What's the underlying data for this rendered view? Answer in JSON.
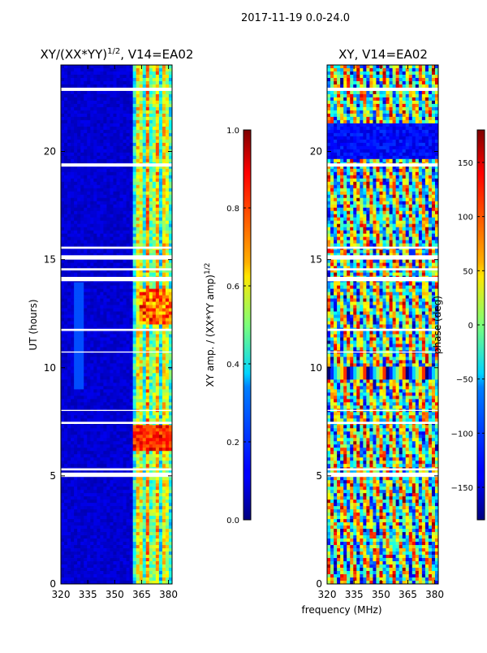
{
  "header": {
    "date_range": "2017-11-19 0.0-24.0"
  },
  "chart_data": [
    {
      "type": "heatmap",
      "title_prefix": "XY/(XX*YY)",
      "title_exp": "1/2",
      "title_suffix": ", V14=EA02",
      "ylabel": "UT (hours)",
      "xlim": [
        320,
        382
      ],
      "ylim": [
        0,
        24
      ],
      "xticks": [
        "320",
        "335",
        "350",
        "365",
        "380"
      ],
      "xtick_values": [
        320,
        335,
        350,
        365,
        380
      ],
      "yticks": [
        "0",
        "5",
        "10",
        "15",
        "20"
      ],
      "ytick_values": [
        0,
        5,
        10,
        15,
        20
      ],
      "colorbar": {
        "label_prefix": "XY amp. / (XX*YY amp)",
        "label_exp": "1/2",
        "range": [
          0.0,
          1.0
        ],
        "ticks": [
          "0.0",
          "0.2",
          "0.4",
          "0.6",
          "0.8",
          "1.0"
        ],
        "tick_values": [
          0.0,
          0.2,
          0.4,
          0.6,
          0.8,
          1.0
        ]
      }
    },
    {
      "type": "heatmap",
      "title_prefix": "XY, V14=EA02",
      "title_exp": "",
      "title_suffix": "",
      "xlabel": "frequency (MHz)",
      "xlim": [
        320,
        382
      ],
      "ylim": [
        0,
        24
      ],
      "xticks": [
        "320",
        "335",
        "350",
        "365",
        "380"
      ],
      "xtick_values": [
        320,
        335,
        350,
        365,
        380
      ],
      "yticks": [
        "0",
        "5",
        "10",
        "15",
        "20"
      ],
      "ytick_values": [
        0,
        5,
        10,
        15,
        20
      ],
      "colorbar": {
        "label_prefix": "phase (deg)",
        "label_exp": "",
        "range": [
          -180,
          180
        ],
        "ticks": [
          "−150",
          "−100",
          "−50",
          "0",
          "50",
          "100",
          "150"
        ],
        "tick_values": [
          -150,
          -100,
          -50,
          0,
          50,
          100,
          150
        ]
      }
    }
  ],
  "flagged_intervals_ut": [
    [
      4.95,
      5.15
    ],
    [
      5.25,
      5.35
    ],
    [
      14.0,
      14.2
    ],
    [
      14.5,
      14.6
    ],
    [
      15.0,
      15.2
    ],
    [
      15.5,
      15.6
    ],
    [
      19.3,
      19.45
    ],
    [
      22.8,
      22.95
    ],
    [
      11.7,
      11.8
    ],
    [
      10.7,
      10.75
    ],
    [
      8.0,
      8.05
    ],
    [
      7.4,
      7.5
    ]
  ]
}
